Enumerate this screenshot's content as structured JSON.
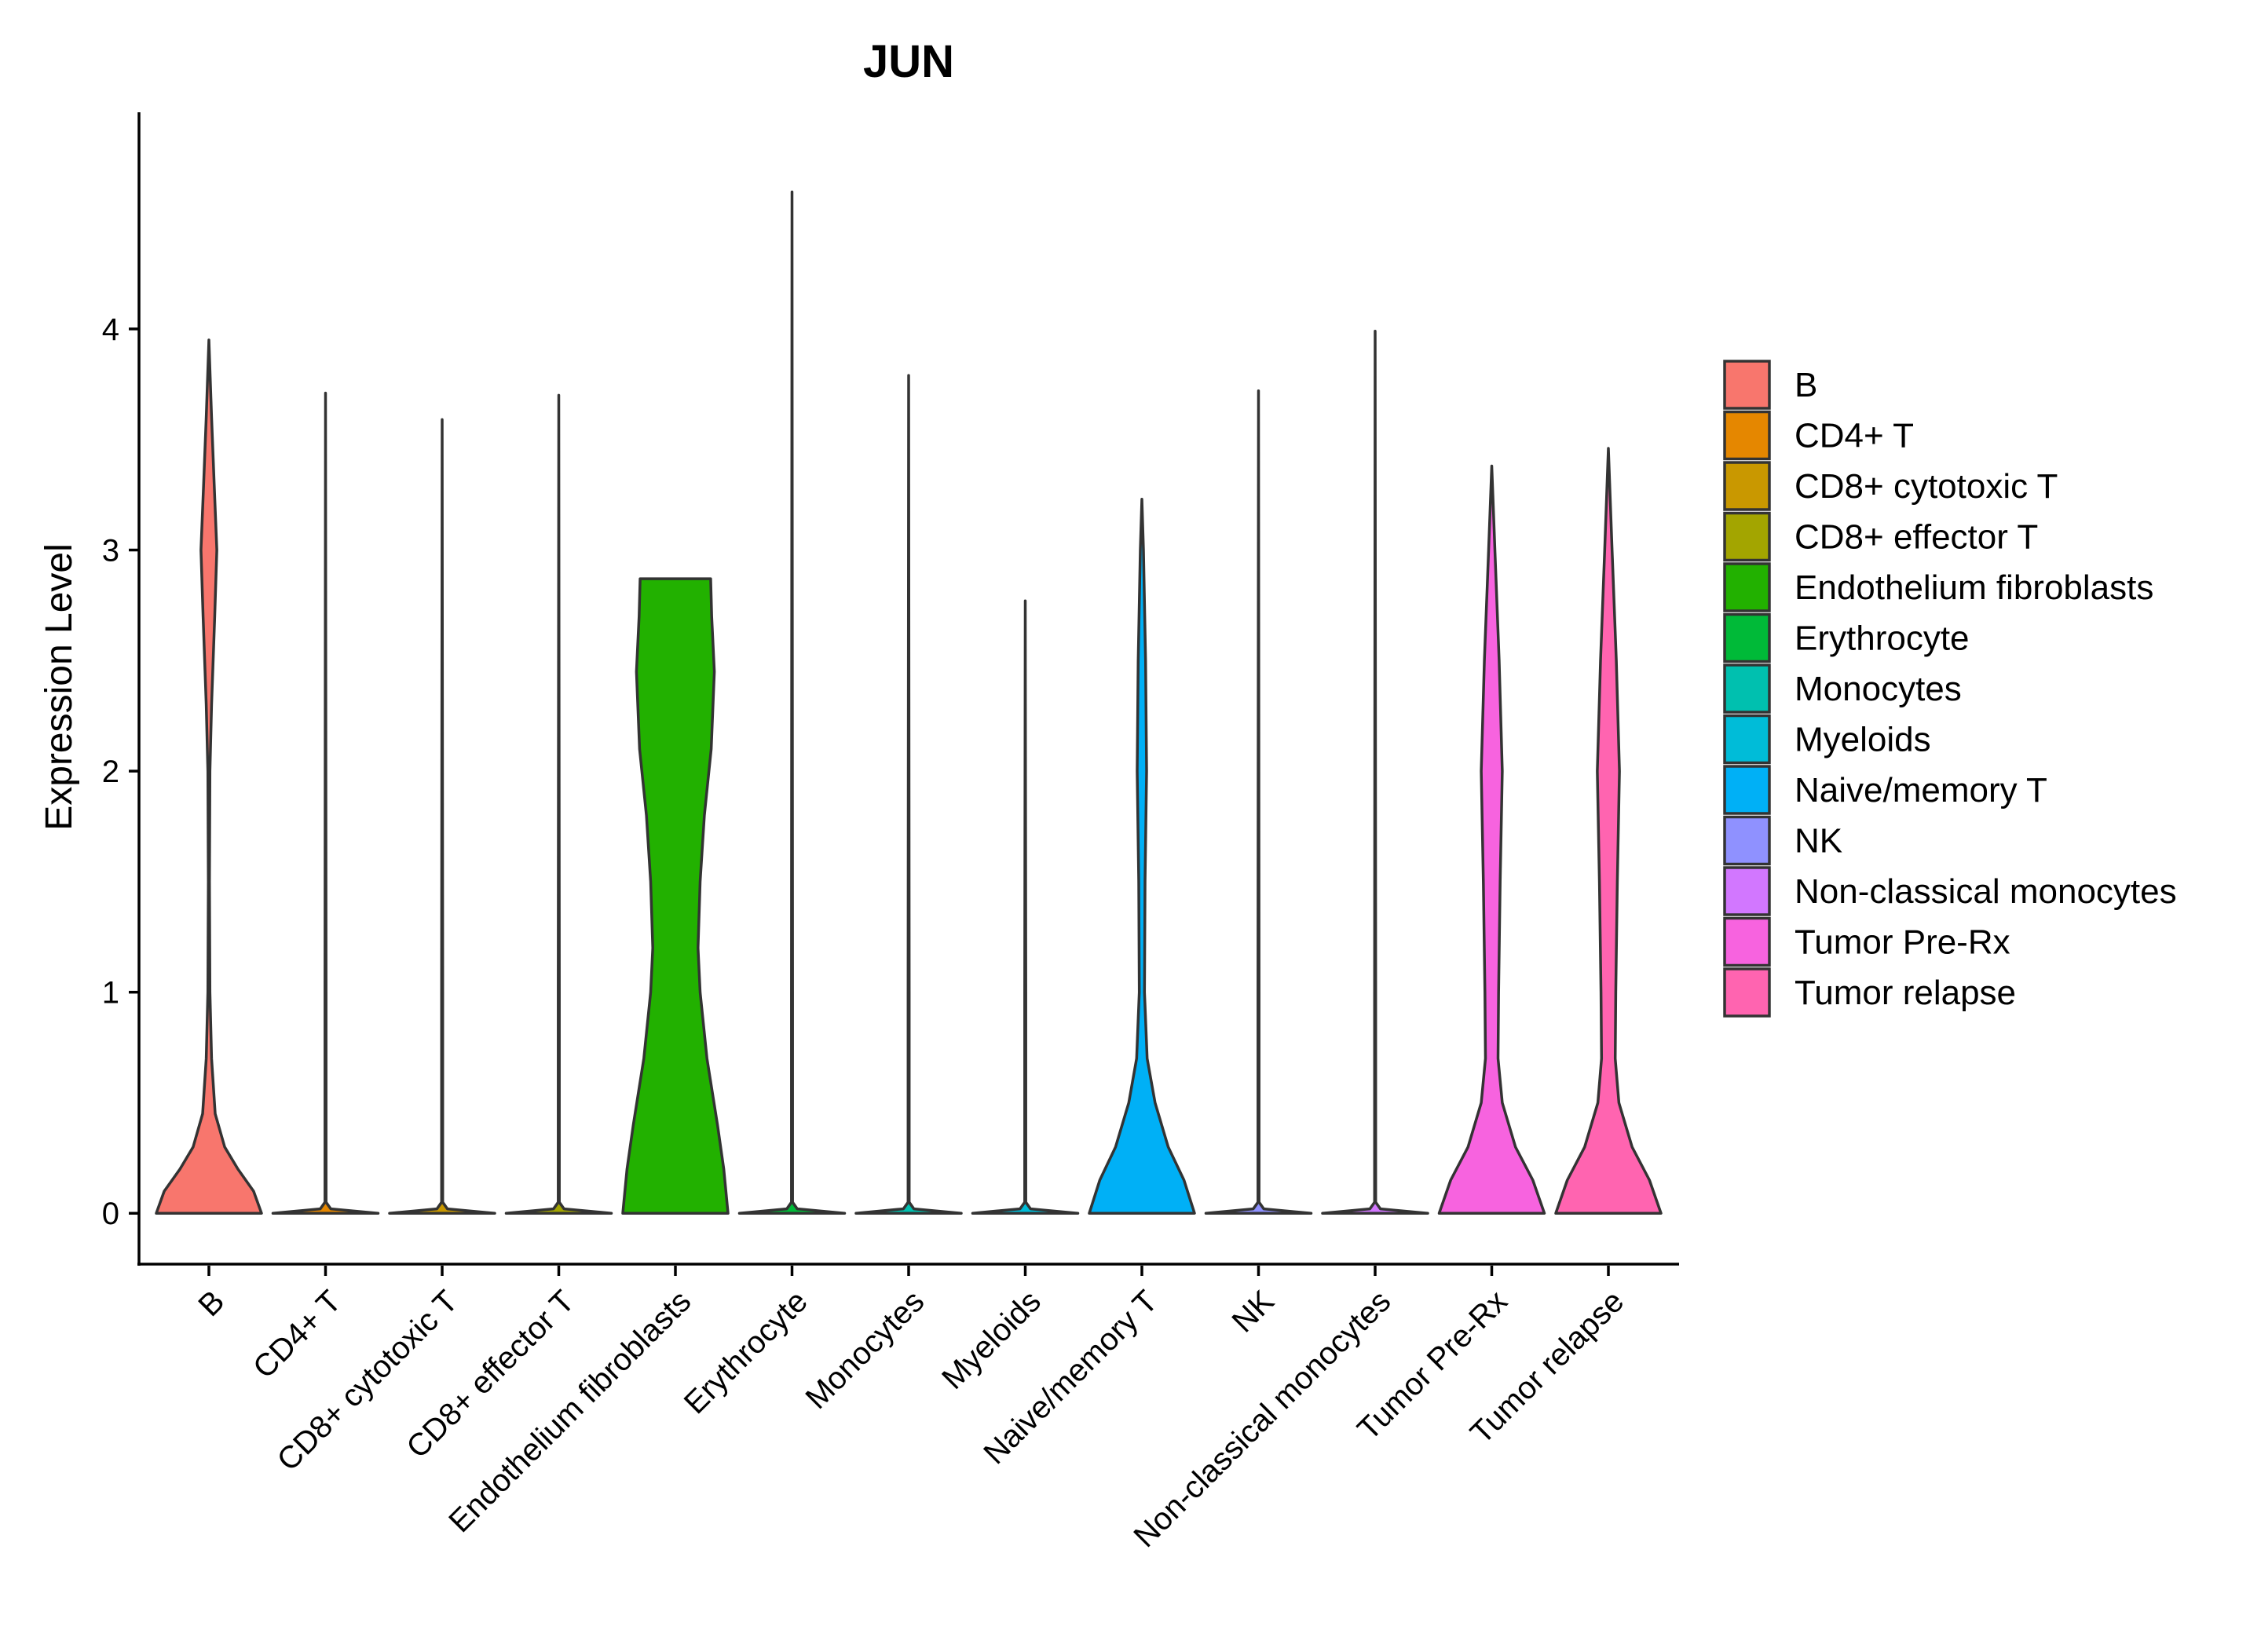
{
  "chart_data": {
    "type": "violin",
    "title": "JUN",
    "xlabel": "",
    "ylabel": "Expression Level",
    "ylim": [
      -0.23,
      4.98
    ],
    "yticks": [
      0,
      1,
      2,
      3,
      4
    ],
    "ytick_labels": [
      "0",
      "1",
      "2",
      "3",
      "4"
    ],
    "grid": false,
    "legend_position": "right",
    "categories": [
      "B",
      "CD4+ T",
      "CD8+ cytotoxic T",
      "CD8+ effector T",
      "Endothelium fibroblasts",
      "Erythrocyte",
      "Monocytes",
      "Myeloids",
      "Naive/memory T",
      "NK",
      "Non-classical monocytes",
      "Tumor Pre-Rx",
      "Tumor relapse"
    ],
    "series": [
      {
        "name": "B",
        "color": "#F8766D",
        "max": 3.95,
        "density": [
          [
            0,
            1.0
          ],
          [
            0.1,
            0.85
          ],
          [
            0.2,
            0.55
          ],
          [
            0.3,
            0.3
          ],
          [
            0.45,
            0.12
          ],
          [
            0.7,
            0.05
          ],
          [
            1.0,
            0.02
          ],
          [
            1.5,
            0.01
          ],
          [
            2.0,
            0.02
          ],
          [
            2.3,
            0.05
          ],
          [
            2.7,
            0.11
          ],
          [
            3.0,
            0.15
          ],
          [
            3.3,
            0.1
          ],
          [
            3.6,
            0.05
          ],
          [
            3.95,
            0
          ]
        ]
      },
      {
        "name": "CD4+ T",
        "color": "#E58700",
        "max": 3.71,
        "density": [
          [
            0,
            1.0
          ],
          [
            0.02,
            0.1
          ],
          [
            0.05,
            0.01
          ],
          [
            1.0,
            0.01
          ],
          [
            3.71,
            0
          ]
        ]
      },
      {
        "name": "CD8+ cytotoxic T",
        "color": "#C99800",
        "max": 3.59,
        "density": [
          [
            0,
            1.0
          ],
          [
            0.02,
            0.1
          ],
          [
            0.05,
            0.01
          ],
          [
            1.0,
            0.01
          ],
          [
            3.59,
            0
          ]
        ]
      },
      {
        "name": "CD8+ effector T",
        "color": "#A3A500",
        "max": 3.7,
        "density": [
          [
            0,
            1.0
          ],
          [
            0.02,
            0.1
          ],
          [
            0.05,
            0.01
          ],
          [
            1.0,
            0.01
          ],
          [
            3.7,
            0
          ]
        ]
      },
      {
        "name": "Endothelium fibroblasts",
        "color": "#22B100",
        "max": 2.87,
        "density": [
          [
            0,
            1.0
          ],
          [
            0.2,
            0.92
          ],
          [
            0.4,
            0.8
          ],
          [
            0.7,
            0.6
          ],
          [
            1.0,
            0.47
          ],
          [
            1.2,
            0.43
          ],
          [
            1.5,
            0.47
          ],
          [
            1.8,
            0.55
          ],
          [
            2.1,
            0.68
          ],
          [
            2.45,
            0.74
          ],
          [
            2.7,
            0.69
          ],
          [
            2.87,
            0.67
          ]
        ]
      },
      {
        "name": "Erythrocyte",
        "color": "#00BA38",
        "max": 4.62,
        "density": [
          [
            0,
            1.0
          ],
          [
            0.02,
            0.1
          ],
          [
            0.05,
            0.01
          ],
          [
            1.0,
            0.01
          ],
          [
            4.62,
            0
          ]
        ]
      },
      {
        "name": "Monocytes",
        "color": "#00C0AF",
        "max": 3.79,
        "density": [
          [
            0,
            1.0
          ],
          [
            0.02,
            0.1
          ],
          [
            0.05,
            0.01
          ],
          [
            1.0,
            0.01
          ],
          [
            3.79,
            0
          ]
        ]
      },
      {
        "name": "Myeloids",
        "color": "#00BCD8",
        "max": 2.77,
        "density": [
          [
            0,
            1.0
          ],
          [
            0.02,
            0.1
          ],
          [
            0.05,
            0.01
          ],
          [
            1.0,
            0.01
          ],
          [
            2.77,
            0
          ]
        ]
      },
      {
        "name": "Naive/memory T",
        "color": "#00B0F6",
        "max": 3.23,
        "density": [
          [
            0,
            1.0
          ],
          [
            0.15,
            0.8
          ],
          [
            0.3,
            0.5
          ],
          [
            0.5,
            0.25
          ],
          [
            0.7,
            0.1
          ],
          [
            1.0,
            0.05
          ],
          [
            1.5,
            0.06
          ],
          [
            2.0,
            0.09
          ],
          [
            2.5,
            0.07
          ],
          [
            3.0,
            0.03
          ],
          [
            3.23,
            0
          ]
        ]
      },
      {
        "name": "NK",
        "color": "#8F91FF",
        "max": 3.72,
        "density": [
          [
            0,
            1.0
          ],
          [
            0.02,
            0.1
          ],
          [
            0.05,
            0.01
          ],
          [
            1.0,
            0.01
          ],
          [
            3.72,
            0
          ]
        ]
      },
      {
        "name": "Non-classical monocytes",
        "color": "#D277FF",
        "max": 3.99,
        "density": [
          [
            0,
            1.0
          ],
          [
            0.02,
            0.1
          ],
          [
            0.05,
            0.01
          ],
          [
            1.0,
            0.01
          ],
          [
            3.99,
            0
          ]
        ]
      },
      {
        "name": "Tumor Pre-Rx",
        "color": "#F763DF",
        "max": 3.38,
        "density": [
          [
            0,
            1.0
          ],
          [
            0.15,
            0.78
          ],
          [
            0.3,
            0.45
          ],
          [
            0.5,
            0.2
          ],
          [
            0.7,
            0.12
          ],
          [
            1.0,
            0.13
          ],
          [
            1.5,
            0.16
          ],
          [
            2.0,
            0.2
          ],
          [
            2.5,
            0.14
          ],
          [
            3.0,
            0.06
          ],
          [
            3.38,
            0
          ]
        ]
      },
      {
        "name": "Tumor relapse",
        "color": "#FF64B0",
        "max": 3.46,
        "density": [
          [
            0,
            1.0
          ],
          [
            0.15,
            0.78
          ],
          [
            0.3,
            0.45
          ],
          [
            0.5,
            0.2
          ],
          [
            0.7,
            0.13
          ],
          [
            1.0,
            0.14
          ],
          [
            1.5,
            0.17
          ],
          [
            2.0,
            0.21
          ],
          [
            2.5,
            0.15
          ],
          [
            3.0,
            0.07
          ],
          [
            3.46,
            0
          ]
        ]
      }
    ]
  }
}
